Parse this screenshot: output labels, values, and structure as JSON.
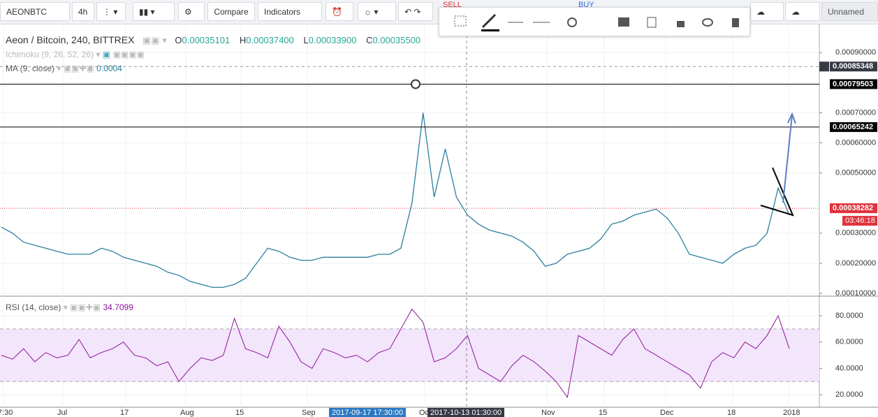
{
  "toolbar": {
    "symbol": "AEONBTC",
    "interval": "4h",
    "compare": "Compare",
    "indicators": "Indicators",
    "sell": "SELL",
    "buy": "BUY",
    "layout": "Unnamed"
  },
  "chart_data": [
    {
      "type": "line",
      "title": "Aeon / Bitcoin, 240, BITTREX",
      "ohlc": [
        {
          "key": "O",
          "value": "0.00035101"
        },
        {
          "key": "H",
          "value": "0.00037400"
        },
        {
          "key": "L",
          "value": "0.00033900"
        },
        {
          "key": "C",
          "value": "0.00035500"
        }
      ],
      "indicators": [
        "Ichimoku (9, 26, 52, 26)",
        "MA (9, close)"
      ],
      "ma_value": "0.0004",
      "color": "#2a7f9e",
      "ylim": [
        9.54e-05,
        0.0009956
      ],
      "yticks": [
        {
          "value": 0.0009,
          "label": "0.00090000"
        },
        {
          "value": 0.0007,
          "label": "0.00070000"
        },
        {
          "value": 0.0006,
          "label": "0.00060000"
        },
        {
          "value": 0.0005,
          "label": "0.00050000"
        },
        {
          "value": 0.0003,
          "label": "0.00030000"
        },
        {
          "value": 0.0002,
          "label": "0.00020000"
        },
        {
          "value": 0.0001,
          "label": "0.00010000"
        }
      ],
      "price_levels": [
        {
          "value": 0.00085348,
          "label": "0.00085348"
        },
        {
          "value": 0.00079503,
          "label": "0.00079503"
        },
        {
          "value": 0.00065242,
          "label": "0.00065242"
        },
        {
          "value": 0.00038282,
          "label": "0.00038282"
        }
      ],
      "countdown": "03:46:18",
      "values": [
        0.00032,
        0.0003,
        0.00027,
        0.00026,
        0.00025,
        0.00024,
        0.00023,
        0.00023,
        0.00023,
        0.00025,
        0.00024,
        0.00022,
        0.00021,
        0.0002,
        0.00019,
        0.00017,
        0.00016,
        0.00014,
        0.00013,
        0.00012,
        0.00012,
        0.00013,
        0.00015,
        0.0002,
        0.00025,
        0.00024,
        0.00022,
        0.00021,
        0.00021,
        0.00022,
        0.00022,
        0.00022,
        0.00022,
        0.00022,
        0.00023,
        0.00023,
        0.00025,
        0.0004,
        0.0007,
        0.00042,
        0.00058,
        0.00042,
        0.00036,
        0.00033,
        0.00031,
        0.0003,
        0.00029,
        0.00027,
        0.00024,
        0.00019,
        0.0002,
        0.00023,
        0.00024,
        0.00025,
        0.00028,
        0.00033,
        0.00034,
        0.00036,
        0.00037,
        0.00038,
        0.00035,
        0.0003,
        0.00023,
        0.00022,
        0.00021,
        0.0002,
        0.00023,
        0.00025,
        0.00026,
        0.0003,
        0.00045,
        0.00036
      ],
      "x_labels": [
        "7:30",
        "Jul",
        "17",
        "Aug",
        "15",
        "Sep",
        "Oct",
        "Nov",
        "15",
        "Dec",
        "18",
        "2018"
      ],
      "crosshair_dates": [
        "2017-09-17 17:30:00",
        "2017-10-13 01:30:00"
      ]
    },
    {
      "type": "line",
      "title": "RSI (14, close)",
      "last_value": "34.7099",
      "color": "#8e1599",
      "ylim": [
        10.5,
        93.3
      ],
      "yticks": [
        {
          "value": 80,
          "label": "80.0000"
        },
        {
          "value": 60,
          "label": "60.0000"
        },
        {
          "value": 40,
          "label": "40.0000"
        },
        {
          "value": 20,
          "label": "20.0000"
        }
      ],
      "band": [
        30,
        70
      ],
      "values": [
        50,
        47,
        55,
        45,
        52,
        48,
        50,
        62,
        48,
        52,
        55,
        60,
        50,
        48,
        42,
        45,
        30,
        40,
        48,
        46,
        50,
        78,
        55,
        52,
        48,
        72,
        60,
        45,
        40,
        55,
        52,
        48,
        50,
        45,
        52,
        55,
        70,
        85,
        75,
        45,
        48,
        55,
        65,
        40,
        35,
        30,
        42,
        50,
        45,
        38,
        30,
        18,
        65,
        60,
        55,
        50,
        62,
        70,
        55,
        50,
        45,
        40,
        35,
        25,
        45,
        52,
        48,
        60,
        55,
        65,
        80,
        55
      ]
    }
  ]
}
